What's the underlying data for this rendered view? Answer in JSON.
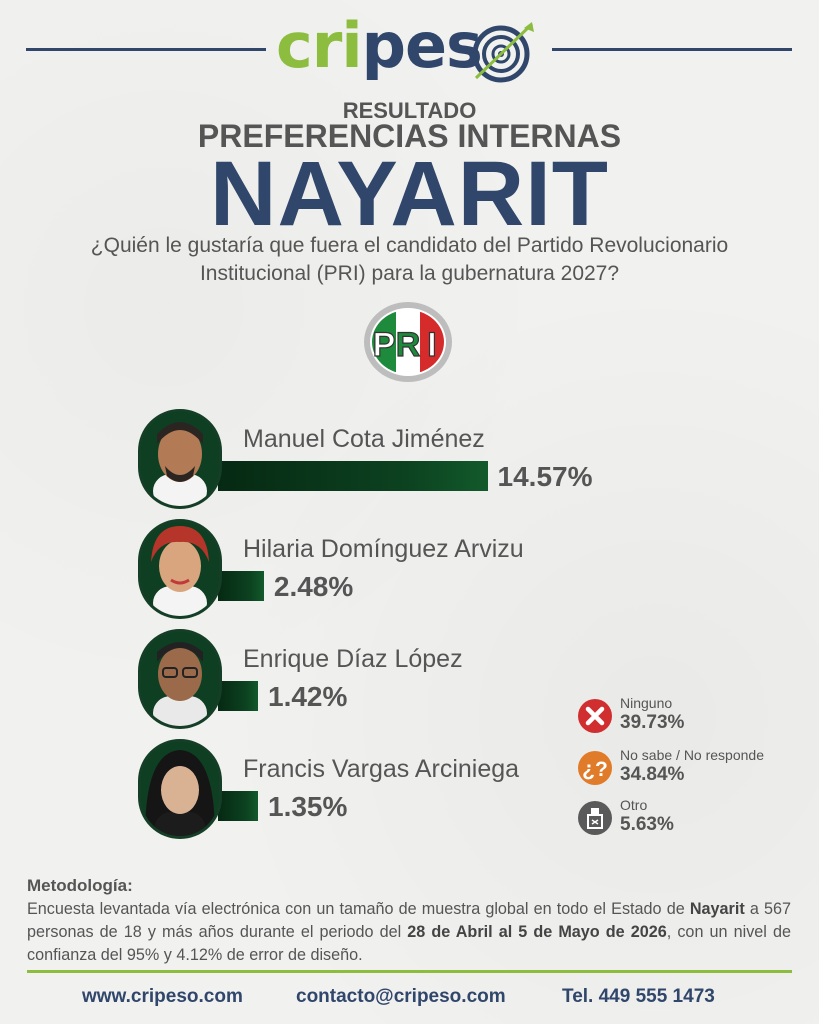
{
  "brand": {
    "logo_green": "cri",
    "logo_blue": "pes"
  },
  "header": {
    "label": "RESULTADO",
    "title": "PREFERENCIAS INTERNAS",
    "state": "NAYARIT",
    "question_line1": "¿Quién le gustaría que fuera el candidato del Partido Revolucionario",
    "question_line2": "Institucional (PRI) para la gubernatura 2027?"
  },
  "party_logo": {
    "text_p": "P",
    "text_r": "R",
    "text_i": "I",
    "colors": [
      "#1e8a3c",
      "#ffffff",
      "#d52b2b"
    ]
  },
  "chart_data": {
    "type": "bar",
    "orientation": "horizontal",
    "categories": [
      "Manuel Cota Jiménez",
      "Hilaria Domínguez Arvizu",
      "Enrique Díaz López",
      "Francis Vargas Arciniega"
    ],
    "values": [
      14.57,
      2.48,
      1.42,
      1.35
    ],
    "value_labels": [
      "14.57%",
      "2.48%",
      "1.42%",
      "1.35%"
    ],
    "bar_color": "#0c4220",
    "other": [
      {
        "label": "Ninguno",
        "value": 39.73,
        "value_label": "39.73%",
        "icon": "x-icon",
        "color": "#d12f2f"
      },
      {
        "label": "No sabe / No responde",
        "value": 34.84,
        "value_label": "34.84%",
        "icon": "question-icon",
        "color": "#e07b2a"
      },
      {
        "label": "Otro",
        "value": 5.63,
        "value_label": "5.63%",
        "icon": "ballot-box-icon",
        "color": "#5a5a5a"
      }
    ]
  },
  "methodology": {
    "title": "Metodología:",
    "text_1": "Encuesta levantada vía electrónica con un tamaño de muestra global en todo el Estado de ",
    "bold_1": "Nayarit",
    "text_2": " a 567 personas de 18 y más años durante el periodo del ",
    "bold_2": "28 de Abril al 5 de Mayo de 2026",
    "text_3": ", con un nivel de confianza del 95% y 4.12% de error de diseño."
  },
  "footer": {
    "website": "www.cripeso.com",
    "email": "contacto@cripeso.com",
    "phone": "Tel. 449 555 1473"
  }
}
